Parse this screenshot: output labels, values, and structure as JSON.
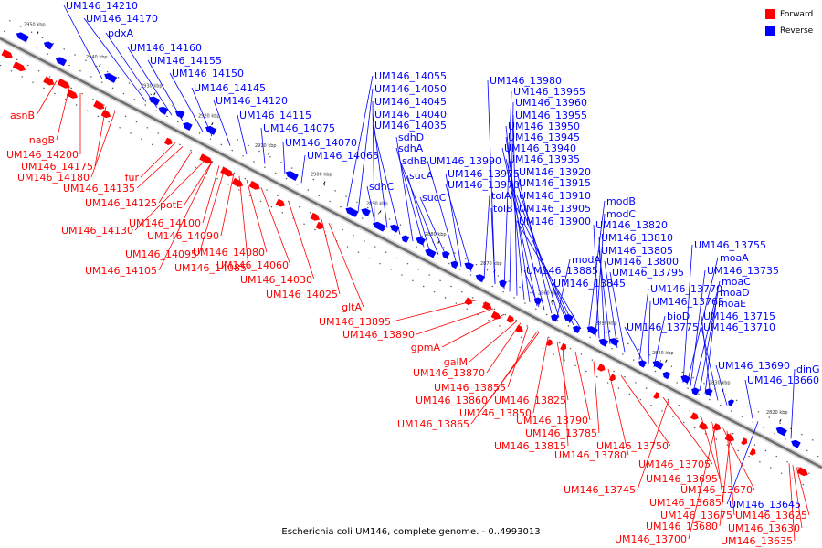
{
  "caption": "Escherichia coli UM146, complete genome. - 0..4993013",
  "legend": [
    {
      "label": "Forward",
      "color": "#ff0000"
    },
    {
      "label": "Reverse",
      "color": "#0000ff"
    }
  ],
  "colors": {
    "forward": "#ff0000",
    "reverse": "#0000ff",
    "axis": "#9a9a9a"
  },
  "kbp_marks": [
    "2950 kbp",
    "2940 kbp",
    "2930 kbp",
    "2920 kbp",
    "2910 kbp",
    "2900 kbp",
    "2890 kbp",
    "2880 kbp",
    "2870 kbp",
    "2860 kbp",
    "2850 kbp",
    "2840 kbp",
    "2830 kbp",
    "2820 kbp"
  ],
  "reverse_labels": [
    "UM146_14210",
    "UM146_14170",
    "pdxA",
    "UM146_14160",
    "UM146_14155",
    "UM146_14150",
    "UM146_14145",
    "UM146_14120",
    "UM146_14115",
    "UM146_14075",
    "UM146_14070",
    "UM146_14065",
    "UM146_14055",
    "UM146_14050",
    "UM146_14045",
    "UM146_14040",
    "UM146_14035",
    "sdhD",
    "sdhA",
    "sdhB",
    "sdhC",
    "sucA",
    "sucC",
    "UM146_13990",
    "UM146_13975",
    "UM146_13970",
    "tolA",
    "tolB",
    "UM146_13980",
    "UM146_13965",
    "UM146_13960",
    "UM146_13955",
    "UM146_13950",
    "UM146_13945",
    "UM146_13940",
    "UM146_13935",
    "UM146_13920",
    "UM146_13915",
    "UM146_13910",
    "UM146_13905",
    "UM146_13900",
    "UM146_13885",
    "modA",
    "UM146_13845",
    "modB",
    "modC",
    "UM146_13820",
    "UM146_13810",
    "UM146_13805",
    "UM146_13800",
    "UM146_13795",
    "UM146_13770",
    "UM146_13765",
    "bioD",
    "UM146_13775",
    "UM146_13755",
    "moaA",
    "UM146_13735",
    "moaC",
    "moaD",
    "moaE",
    "UM146_13715",
    "UM146_13710",
    "UM146_13690",
    "UM146_13660",
    "dinG",
    "UM146_13645"
  ],
  "forward_labels": [
    "asnB",
    "nagB",
    "UM146_14200",
    "UM146_14175",
    "UM146_14180",
    "fur",
    "UM146_14135",
    "UM146_14125",
    "potE",
    "UM146_14130",
    "UM146_14100",
    "UM146_14090",
    "UM146_14095",
    "UM146_14080",
    "UM146_14085",
    "UM146_14105",
    "UM146_14060",
    "UM146_14030",
    "UM146_14025",
    "gltA",
    "UM146_13895",
    "UM146_13890",
    "gpmA",
    "galM",
    "UM146_13870",
    "UM146_13855",
    "UM146_13860",
    "UM146_13825",
    "UM146_13850",
    "UM146_13865",
    "UM146_13790",
    "UM146_13785",
    "UM146_13815",
    "UM146_13780",
    "UM146_13750",
    "UM146_13705",
    "UM146_13745",
    "UM146_13695",
    "UM146_13685",
    "UM146_13670",
    "UM146_13675",
    "UM146_13680",
    "UM146_13700",
    "UM146_13625",
    "UM146_13630",
    "UM146_13635"
  ]
}
